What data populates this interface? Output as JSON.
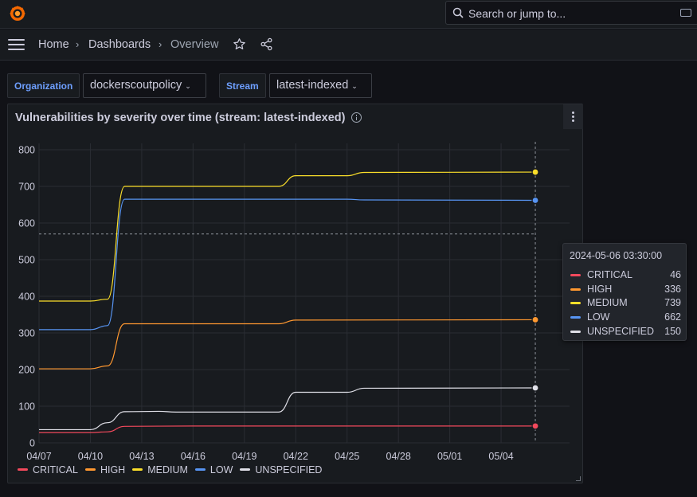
{
  "topbar": {
    "logo_icon": "grafana-logo-icon",
    "search_placeholder": "Search or jump to..."
  },
  "breadcrumb": {
    "items": [
      "Home",
      "Dashboards",
      "Overview"
    ],
    "star_icon": "star-icon",
    "share_icon": "share-icon"
  },
  "variables": [
    {
      "label": "Organization",
      "value": "dockerscoutpolicy"
    },
    {
      "label": "Stream",
      "value": "latest-indexed"
    }
  ],
  "panel": {
    "title": "Vulnerabilities by severity over time (stream: latest-indexed)"
  },
  "tooltip": {
    "time": "2024-05-06 03:30:00",
    "rows": [
      {
        "name": "CRITICAL",
        "value": "46"
      },
      {
        "name": "HIGH",
        "value": "336"
      },
      {
        "name": "MEDIUM",
        "value": "739"
      },
      {
        "name": "LOW",
        "value": "662"
      },
      {
        "name": "UNSPECIFIED",
        "value": "150"
      }
    ]
  },
  "colors": {
    "CRITICAL": "#f2495c",
    "HIGH": "#ff9830",
    "MEDIUM": "#fade2a",
    "LOW": "#5794f2",
    "UNSPECIFIED": "#e0e0e8"
  },
  "chart_data": {
    "type": "line",
    "title": "Vulnerabilities by severity over time (stream: latest-indexed)",
    "ylim": [
      0,
      800
    ],
    "y_ticks": [
      0,
      100,
      200,
      300,
      400,
      500,
      600,
      700,
      800
    ],
    "x_ticks": [
      "04/07",
      "04/10",
      "04/13",
      "04/16",
      "04/19",
      "04/22",
      "04/25",
      "04/28",
      "05/01",
      "05/04"
    ],
    "xlim": [
      "2024-04-07",
      "2024-05-08"
    ],
    "grid": true,
    "legend": "bottom",
    "hover_x": "2024-05-06",
    "series": [
      {
        "name": "CRITICAL",
        "points": [
          [
            "2024-04-07",
            28
          ],
          [
            "2024-04-10",
            28
          ],
          [
            "2024-04-11",
            30
          ],
          [
            "2024-04-12",
            45
          ],
          [
            "2024-04-16",
            46
          ],
          [
            "2024-05-06",
            46
          ]
        ]
      },
      {
        "name": "HIGH",
        "points": [
          [
            "2024-04-07",
            202
          ],
          [
            "2024-04-10",
            202
          ],
          [
            "2024-04-11",
            210
          ],
          [
            "2024-04-12",
            325
          ],
          [
            "2024-04-21",
            325
          ],
          [
            "2024-04-22",
            335
          ],
          [
            "2024-05-06",
            336
          ]
        ]
      },
      {
        "name": "MEDIUM",
        "points": [
          [
            "2024-04-07",
            387
          ],
          [
            "2024-04-10",
            387
          ],
          [
            "2024-04-11",
            392
          ],
          [
            "2024-04-12",
            700
          ],
          [
            "2024-04-21",
            700
          ],
          [
            "2024-04-22",
            729
          ],
          [
            "2024-04-25",
            729
          ],
          [
            "2024-04-26",
            738
          ],
          [
            "2024-05-06",
            739
          ]
        ]
      },
      {
        "name": "LOW",
        "points": [
          [
            "2024-04-07",
            309
          ],
          [
            "2024-04-10",
            309
          ],
          [
            "2024-04-11",
            320
          ],
          [
            "2024-04-12",
            665
          ],
          [
            "2024-04-25",
            665
          ],
          [
            "2024-04-26",
            663
          ],
          [
            "2024-05-06",
            662
          ]
        ]
      },
      {
        "name": "UNSPECIFIED",
        "points": [
          [
            "2024-04-07",
            36
          ],
          [
            "2024-04-10",
            36
          ],
          [
            "2024-04-11",
            55
          ],
          [
            "2024-04-12",
            85
          ],
          [
            "2024-04-14",
            86
          ],
          [
            "2024-04-15",
            84
          ],
          [
            "2024-04-21",
            84
          ],
          [
            "2024-04-22",
            138
          ],
          [
            "2024-04-25",
            138
          ],
          [
            "2024-04-26",
            149
          ],
          [
            "2024-05-06",
            150
          ]
        ]
      }
    ]
  }
}
